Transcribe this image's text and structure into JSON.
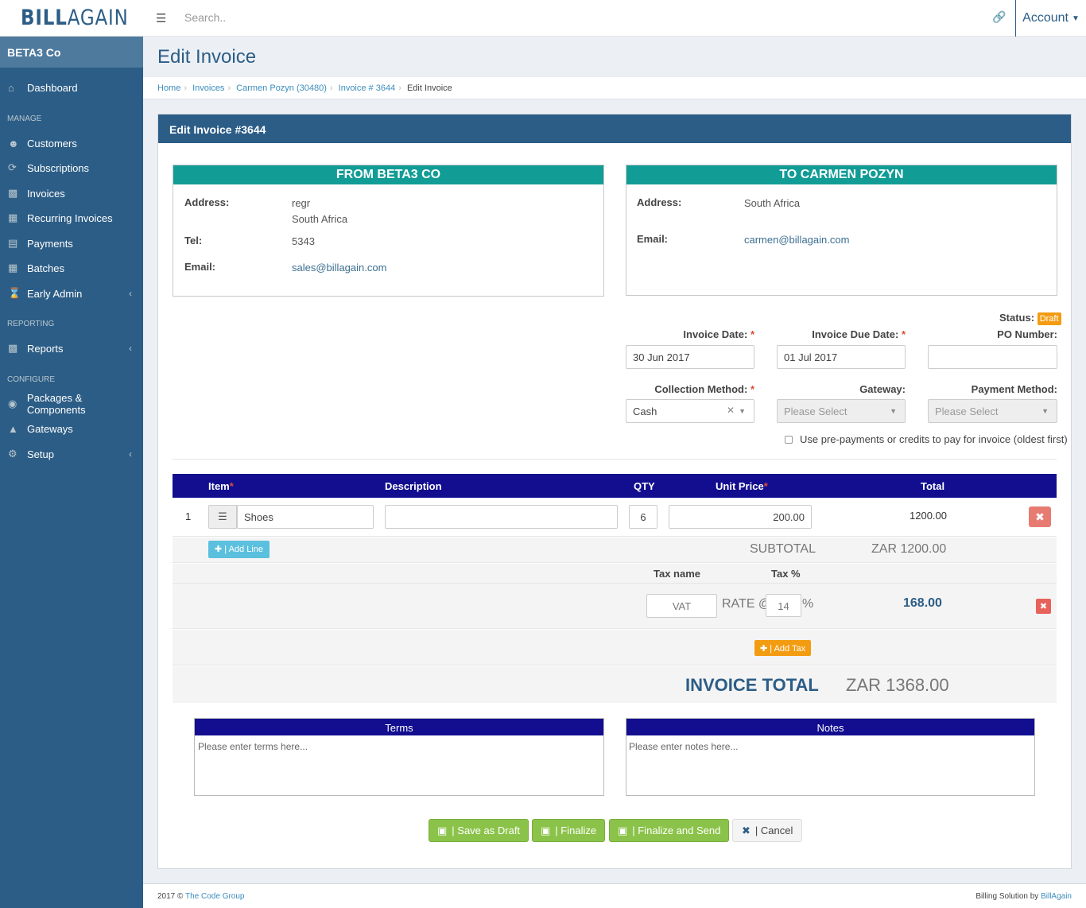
{
  "app": {
    "brand_bold": "BILL",
    "brand_light": "AGAIN",
    "search_placeholder": "Search..",
    "account_label": "Account"
  },
  "sidebar": {
    "company": "BETA3 Co",
    "dashboard": "Dashboard",
    "section_manage": "MANAGE",
    "manage_items": [
      "Customers",
      "Subscriptions",
      "Invoices",
      "Recurring Invoices",
      "Payments",
      "Batches",
      "Early Admin"
    ],
    "section_reporting": "REPORTING",
    "reports": "Reports",
    "section_configure": "CONFIGURE",
    "configure_items": [
      "Packages & Components",
      "Gateways",
      "Setup"
    ]
  },
  "page": {
    "title": "Edit Invoice",
    "breadcrumb": [
      "Home",
      "Invoices",
      "Carmen Pozyn (30480)",
      "Invoice # 3644",
      "Edit Invoice"
    ],
    "box_title": "Edit Invoice #3644"
  },
  "from": {
    "heading": "FROM BETA3 CO",
    "address_label": "Address:",
    "address_line1": "regr",
    "address_line2": "South Africa",
    "tel_label": "Tel:",
    "tel": "5343",
    "email_label": "Email:",
    "email": "sales@billagain.com"
  },
  "to": {
    "heading": "TO CARMEN POZYN",
    "address_label": "Address:",
    "address": "South Africa",
    "email_label": "Email:",
    "email": "carmen@billagain.com"
  },
  "status": {
    "label": "Status:",
    "value": "Draft"
  },
  "fields": {
    "invoice_date_label": "Invoice Date:",
    "invoice_date": "30 Jun 2017",
    "due_date_label": "Invoice Due Date:",
    "due_date": "01 Jul 2017",
    "po_label": "PO Number:",
    "po_value": "",
    "collection_label": "Collection Method:",
    "collection_value": "Cash",
    "gateway_label": "Gateway:",
    "gateway_value": "Please Select",
    "payment_label": "Payment Method:",
    "payment_value": "Please Select",
    "prepay_label": "Use pre-payments or credits to pay for invoice (oldest first)"
  },
  "items": {
    "headers": {
      "item": "Item",
      "description": "Description",
      "qty": "QTY",
      "unit_price": "Unit Price",
      "total": "Total"
    },
    "rows": [
      {
        "num": "1",
        "item": "Shoes",
        "description": "",
        "qty": "6",
        "unit_price": "200.00",
        "total": "1200.00"
      }
    ],
    "add_line": "| Add Line",
    "subtotal_label": "SUBTOTAL",
    "subtotal": "ZAR 1200.00"
  },
  "tax": {
    "name_header": "Tax name",
    "pct_header": "Tax %",
    "rows": [
      {
        "name": "VAT",
        "rate_label": "RATE @",
        "rate": "14",
        "pct_sign": "%",
        "amount": "168.00"
      }
    ],
    "add_tax": "| Add Tax"
  },
  "total": {
    "label": "INVOICE TOTAL",
    "value": "ZAR 1368.00"
  },
  "terms": {
    "heading": "Terms",
    "placeholder": "Please enter terms here..."
  },
  "notes": {
    "heading": "Notes",
    "placeholder": "Please enter notes here..."
  },
  "actions": {
    "save_draft": "| Save as Draft",
    "finalize": "| Finalize",
    "finalize_send": "| Finalize and Send",
    "cancel": "| Cancel"
  },
  "footer": {
    "left_prefix": "2017 © ",
    "left_link": "The Code Group",
    "right_prefix": "Billing Solution by ",
    "right_link": "BillAgain"
  },
  "colors": {
    "primary": "#2c5d86",
    "teal": "#119c96",
    "navy": "#120e8f",
    "green": "#8bc34a",
    "orange": "#f39c12",
    "danger": "#e77b72"
  }
}
